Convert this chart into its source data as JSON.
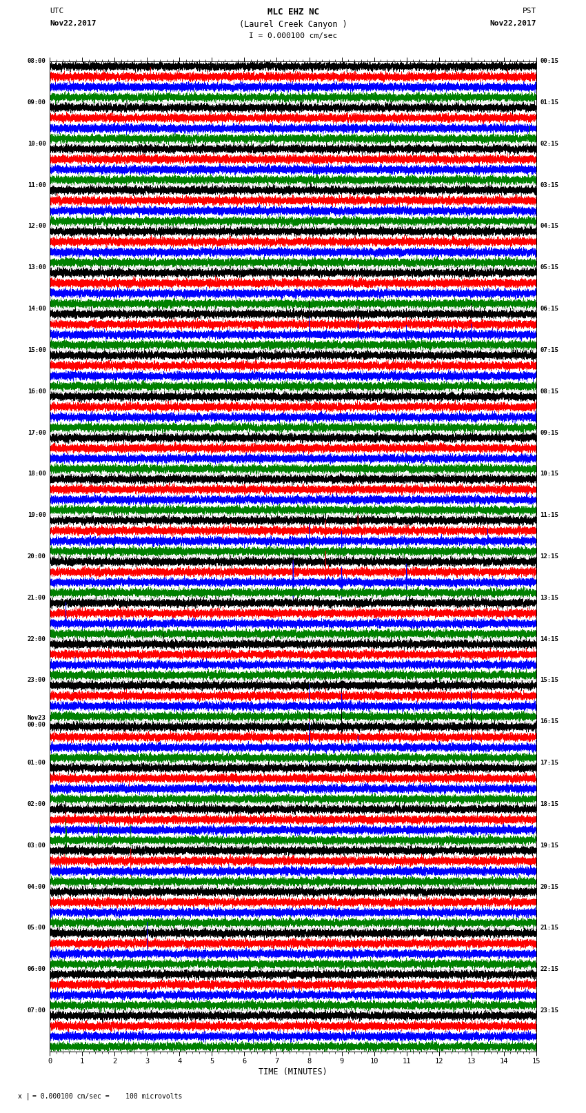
{
  "title_line1": "MLC EHZ NC",
  "title_line2": "(Laurel Creek Canyon )",
  "title_line3": "I = 0.000100 cm/sec",
  "utc_label": "UTC",
  "utc_date": "Nov22,2017",
  "pst_label": "PST",
  "pst_date": "Nov22,2017",
  "xlabel": "TIME (MINUTES)",
  "footer": "= 0.000100 cm/sec =    100 microvolts",
  "footer_prefix": "x |",
  "left_times_utc": [
    "08:00",
    "09:00",
    "10:00",
    "11:00",
    "12:00",
    "13:00",
    "14:00",
    "15:00",
    "16:00",
    "17:00",
    "18:00",
    "19:00",
    "20:00",
    "21:00",
    "22:00",
    "23:00",
    "Nov23\n00:00",
    "01:00",
    "02:00",
    "03:00",
    "04:00",
    "05:00",
    "06:00",
    "07:00"
  ],
  "right_times_pst": [
    "00:15",
    "01:15",
    "02:15",
    "03:15",
    "04:15",
    "05:15",
    "06:15",
    "07:15",
    "08:15",
    "09:15",
    "10:15",
    "11:15",
    "12:15",
    "13:15",
    "14:15",
    "15:15",
    "16:15",
    "17:15",
    "18:15",
    "19:15",
    "20:15",
    "21:15",
    "22:15",
    "23:15"
  ],
  "channel_colors": [
    "black",
    "red",
    "blue",
    "green"
  ],
  "n_hours": 24,
  "n_channels": 4,
  "minutes": 15,
  "sample_rate": 40,
  "background_color": "white",
  "xlim": [
    0,
    15
  ],
  "xticks_major": [
    0,
    1,
    2,
    3,
    4,
    5,
    6,
    7,
    8,
    9,
    10,
    11,
    12,
    13,
    14,
    15
  ],
  "xtick_minor": 0.2
}
